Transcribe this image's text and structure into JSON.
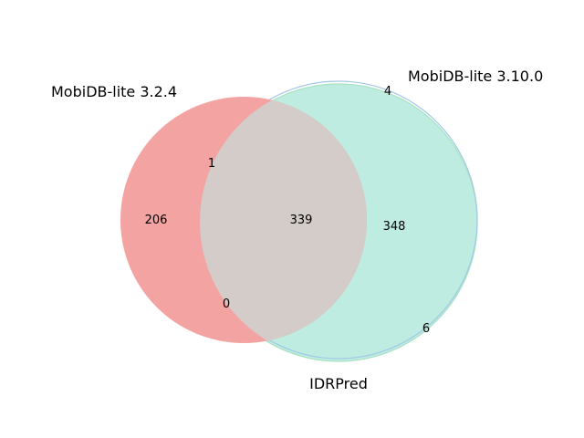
{
  "diagram": {
    "type": "venn3",
    "sets": [
      {
        "key": "A",
        "label": "MobiDB-lite 3.2.4",
        "color": "#f4a3a3"
      },
      {
        "key": "B",
        "label": "MobiDB-lite 3.10.0",
        "color": "#a3c8e6"
      },
      {
        "key": "C",
        "label": "IDRPred",
        "color": "#a6e3c1"
      }
    ],
    "regions": {
      "A_only": "206",
      "B_only": "4",
      "C_only": "6",
      "AB_only": "1",
      "AC_only": "0",
      "BC_only": "348",
      "ABC": "339"
    },
    "colors": {
      "A_only": "#f4a3a3",
      "BC_only": "#beece1",
      "ABC": "#d3ccc8"
    }
  }
}
